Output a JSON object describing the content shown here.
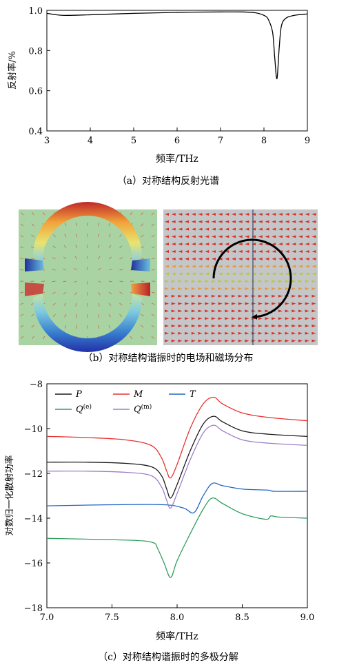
{
  "panel_a": {
    "caption": "（a）对称结构反射光谱",
    "ylabel": "反射率/%",
    "xlabel": "频率/THz",
    "xticks": [
      "3",
      "4",
      "5",
      "6",
      "7",
      "8",
      "9"
    ],
    "yticks": [
      "0.4",
      "0.6",
      "0.8",
      "1.0"
    ]
  },
  "panel_b": {
    "caption": "（b）对称结构谐振时的电场和磁场分布"
  },
  "panel_c": {
    "caption": "（c）对称结构谐振时的多极分解",
    "ylabel": "对数归一化散射功率",
    "xlabel": "频率/THz",
    "xticks": [
      "7.0",
      "7.5",
      "8.0",
      "8.5",
      "9.0"
    ],
    "yticks": [
      "−8",
      "−10",
      "−12",
      "−14",
      "−16",
      "−18"
    ],
    "legend": [
      {
        "label": "P",
        "sup": "",
        "color": "#1a1a1a"
      },
      {
        "label": "M",
        "sup": "",
        "color": "#e8312f"
      },
      {
        "label": "T",
        "sup": "",
        "color": "#2166c4"
      },
      {
        "label": "Q",
        "sup": "(e)",
        "color": "#2e9e5b"
      },
      {
        "label": "Q",
        "sup": "(m)",
        "color": "#9b7ec8"
      }
    ]
  },
  "chart_data": [
    {
      "type": "line",
      "xlabel": "频率/THz",
      "ylabel": "反射率/%",
      "xlim": [
        3,
        9
      ],
      "ylim": [
        0.4,
        1.0
      ],
      "grid": false,
      "series": [
        {
          "color": "#000000",
          "x": [
            3.0,
            3.3,
            3.5,
            4.0,
            5.0,
            6.0,
            7.0,
            7.5,
            7.8,
            8.0,
            8.1,
            8.2,
            8.25,
            8.3,
            8.35,
            8.4,
            8.5,
            8.7,
            9.0
          ],
          "y": [
            0.985,
            0.976,
            0.975,
            0.978,
            0.985,
            0.99,
            0.992,
            0.992,
            0.988,
            0.975,
            0.955,
            0.89,
            0.76,
            0.66,
            0.81,
            0.92,
            0.96,
            0.975,
            0.982
          ]
        }
      ]
    },
    {
      "type": "line",
      "xlabel": "频率/THz",
      "ylabel": "对数归一化散射功率",
      "xlim": [
        7.0,
        9.0
      ],
      "ylim": [
        -18,
        -8
      ],
      "grid": false,
      "legend_position": "top-left",
      "series": [
        {
          "name": "P",
          "color": "#1a1a1a",
          "x": [
            7.0,
            7.3,
            7.6,
            7.8,
            7.88,
            7.92,
            7.95,
            8.0,
            8.1,
            8.2,
            8.28,
            8.35,
            8.5,
            8.7,
            9.0
          ],
          "y": [
            -11.5,
            -11.5,
            -11.55,
            -11.7,
            -12.1,
            -12.7,
            -13.1,
            -12.5,
            -11.0,
            -9.8,
            -9.45,
            -9.7,
            -10.1,
            -10.25,
            -10.35
          ]
        },
        {
          "name": "M",
          "color": "#e8312f",
          "x": [
            7.0,
            7.3,
            7.6,
            7.8,
            7.88,
            7.92,
            7.95,
            8.0,
            8.1,
            8.2,
            8.28,
            8.35,
            8.5,
            8.7,
            9.0
          ],
          "y": [
            -10.35,
            -10.4,
            -10.5,
            -10.75,
            -11.3,
            -11.9,
            -12.2,
            -11.6,
            -10.0,
            -8.9,
            -8.6,
            -8.9,
            -9.3,
            -9.5,
            -9.65
          ]
        },
        {
          "name": "T",
          "color": "#2166c4",
          "x": [
            7.0,
            7.5,
            7.9,
            8.05,
            8.13,
            8.2,
            8.27,
            8.35,
            8.5,
            8.7,
            8.75,
            9.0
          ],
          "y": [
            -13.45,
            -13.4,
            -13.4,
            -13.55,
            -13.75,
            -13.0,
            -12.45,
            -12.55,
            -12.7,
            -12.75,
            -12.8,
            -12.8
          ]
        },
        {
          "name": "Q(e)",
          "color": "#2e9e5b",
          "x": [
            7.0,
            7.4,
            7.7,
            7.82,
            7.85,
            7.9,
            7.95,
            8.0,
            8.1,
            8.2,
            8.27,
            8.35,
            8.5,
            8.68,
            8.72,
            8.78,
            9.0
          ],
          "y": [
            -14.9,
            -14.95,
            -15.0,
            -15.1,
            -15.35,
            -16.0,
            -16.65,
            -15.9,
            -14.7,
            -13.6,
            -13.1,
            -13.35,
            -13.8,
            -14.05,
            -13.9,
            -13.95,
            -14.0
          ]
        },
        {
          "name": "Q(m)",
          "color": "#9b7ec8",
          "x": [
            7.0,
            7.3,
            7.6,
            7.8,
            7.88,
            7.92,
            7.95,
            8.0,
            8.1,
            8.2,
            8.28,
            8.35,
            8.5,
            8.7,
            9.0
          ],
          "y": [
            -11.9,
            -11.9,
            -11.95,
            -12.1,
            -12.6,
            -13.2,
            -13.55,
            -12.9,
            -11.4,
            -10.2,
            -9.85,
            -10.1,
            -10.5,
            -10.65,
            -10.75
          ]
        }
      ]
    }
  ]
}
